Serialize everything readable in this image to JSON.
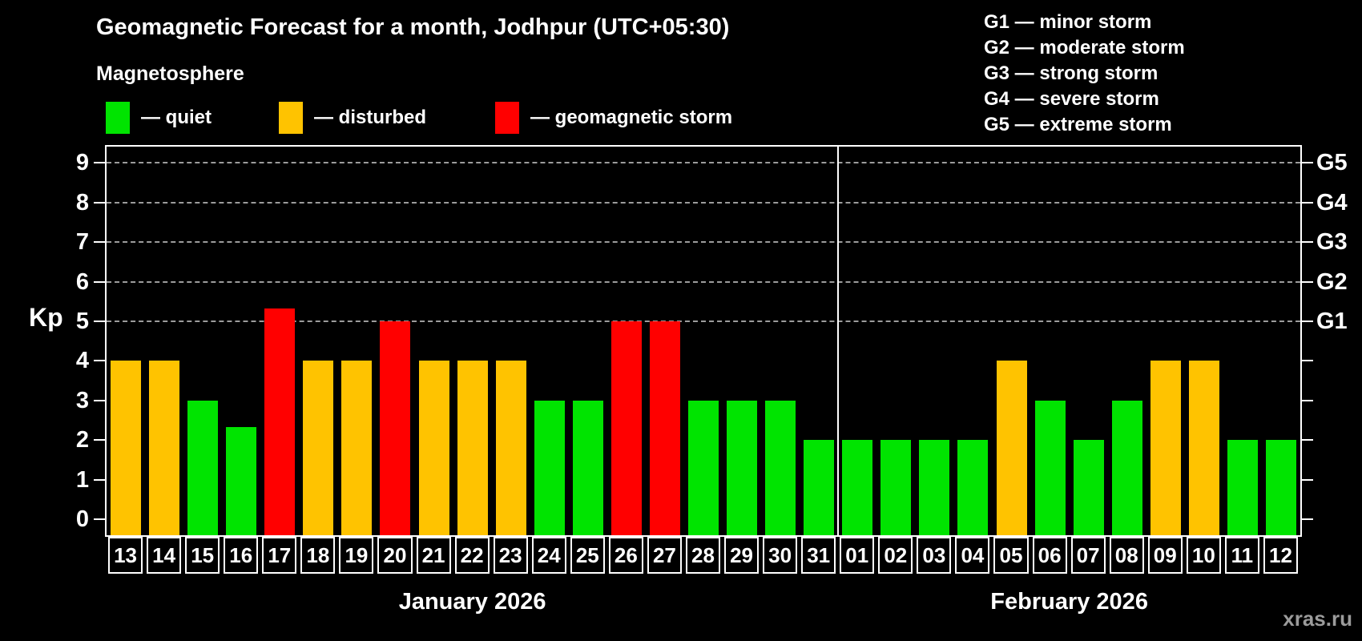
{
  "title": "Geomagnetic Forecast for a month, Jodhpur (UTC+05:30)",
  "subtitle": "Magnetosphere",
  "legend": {
    "items": [
      {
        "key": "quiet",
        "label": "— quiet"
      },
      {
        "key": "disturbed",
        "label": "— disturbed"
      },
      {
        "key": "storm",
        "label": "— geomagnetic storm"
      }
    ],
    "colors": {
      "quiet": "#00e400",
      "disturbed": "#ffc300",
      "storm": "#ff0000"
    }
  },
  "g_legend": {
    "items": [
      "G1 — minor storm",
      "G2 — moderate storm",
      "G3 — strong storm",
      "G4 — severe storm",
      "G5 — extreme storm"
    ]
  },
  "y_axis": {
    "label": "Kp",
    "tick_labels": [
      "0",
      "1",
      "2",
      "3",
      "4",
      "5",
      "6",
      "7",
      "8",
      "9"
    ]
  },
  "right_axis": {
    "labels": [
      {
        "kp": 5,
        "text": "G1"
      },
      {
        "kp": 6,
        "text": "G2"
      },
      {
        "kp": 7,
        "text": "G3"
      },
      {
        "kp": 8,
        "text": "G4"
      },
      {
        "kp": 9,
        "text": "G5"
      }
    ]
  },
  "months": [
    {
      "label": "January 2026",
      "days": [
        "13",
        "14",
        "15",
        "16",
        "17",
        "18",
        "19",
        "20",
        "21",
        "22",
        "23",
        "24",
        "25",
        "26",
        "27",
        "28",
        "29",
        "30",
        "31"
      ],
      "values": [
        4,
        4,
        3,
        2.33,
        5.33,
        4,
        4,
        5,
        4,
        4,
        4,
        3,
        3,
        5,
        5,
        3,
        3,
        3,
        2
      ],
      "statuses": [
        "disturbed",
        "disturbed",
        "quiet",
        "quiet",
        "storm",
        "disturbed",
        "disturbed",
        "storm",
        "disturbed",
        "disturbed",
        "disturbed",
        "quiet",
        "quiet",
        "storm",
        "storm",
        "quiet",
        "quiet",
        "quiet",
        "quiet"
      ]
    },
    {
      "label": "February 2026",
      "days": [
        "01",
        "02",
        "03",
        "04",
        "05",
        "06",
        "07",
        "08",
        "09",
        "10",
        "11",
        "12"
      ],
      "values": [
        2,
        2,
        2,
        2,
        4,
        3,
        2,
        3,
        4,
        4,
        2,
        2
      ],
      "statuses": [
        "quiet",
        "quiet",
        "quiet",
        "quiet",
        "disturbed",
        "quiet",
        "quiet",
        "quiet",
        "disturbed",
        "disturbed",
        "quiet",
        "quiet"
      ]
    }
  ],
  "watermark": "xras.ru",
  "chart_data": {
    "type": "bar",
    "title": "Geomagnetic Forecast for a month, Jodhpur (UTC+05:30)",
    "subtitle": "Magnetosphere",
    "ylabel": "Kp",
    "ylim": [
      0,
      9
    ],
    "yticks": [
      0,
      1,
      2,
      3,
      4,
      5,
      6,
      7,
      8,
      9
    ],
    "gridlines_at": [
      5,
      6,
      7,
      8,
      9
    ],
    "right_axis_labels": {
      "5": "G1",
      "6": "G2",
      "7": "G3",
      "8": "G4",
      "9": "G5"
    },
    "legend_position": "top-left",
    "categories": [
      "Jan 13",
      "Jan 14",
      "Jan 15",
      "Jan 16",
      "Jan 17",
      "Jan 18",
      "Jan 19",
      "Jan 20",
      "Jan 21",
      "Jan 22",
      "Jan 23",
      "Jan 24",
      "Jan 25",
      "Jan 26",
      "Jan 27",
      "Jan 28",
      "Jan 29",
      "Jan 30",
      "Jan 31",
      "Feb 01",
      "Feb 02",
      "Feb 03",
      "Feb 04",
      "Feb 05",
      "Feb 06",
      "Feb 07",
      "Feb 08",
      "Feb 09",
      "Feb 10",
      "Feb 11",
      "Feb 12"
    ],
    "values": [
      4,
      4,
      3,
      2.33,
      5.33,
      4,
      4,
      5,
      4,
      4,
      4,
      3,
      3,
      5,
      5,
      3,
      3,
      3,
      2,
      2,
      2,
      2,
      2,
      4,
      3,
      2,
      3,
      4,
      4,
      2,
      2
    ],
    "statuses": [
      "disturbed",
      "disturbed",
      "quiet",
      "quiet",
      "storm",
      "disturbed",
      "disturbed",
      "storm",
      "disturbed",
      "disturbed",
      "disturbed",
      "quiet",
      "quiet",
      "storm",
      "storm",
      "quiet",
      "quiet",
      "quiet",
      "quiet",
      "quiet",
      "quiet",
      "quiet",
      "quiet",
      "disturbed",
      "quiet",
      "quiet",
      "quiet",
      "disturbed",
      "disturbed",
      "quiet",
      "quiet"
    ],
    "status_colors": {
      "quiet": "#00e400",
      "disturbed": "#ffc300",
      "storm": "#ff0000"
    }
  }
}
